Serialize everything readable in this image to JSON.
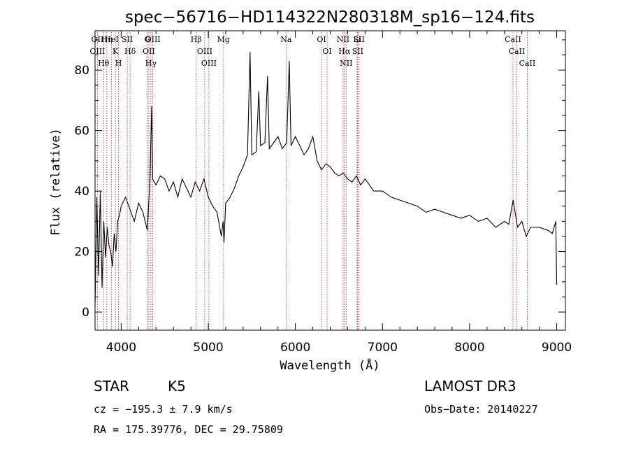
{
  "chart_data": {
    "type": "line",
    "title": "spec−56716−HD114322N280318M_sp16−124.fits",
    "xlabel": "Wavelength (Å)",
    "ylabel": "Flux (relative)",
    "xlim": [
      3700,
      9100
    ],
    "ylim": [
      -6,
      93
    ],
    "xticks": [
      4000,
      5000,
      6000,
      7000,
      8000,
      9000
    ],
    "yticks": [
      0,
      20,
      40,
      60,
      80
    ],
    "grid": false,
    "series": [
      {
        "name": "spectrum",
        "x": [
          3700,
          3720,
          3740,
          3760,
          3780,
          3800,
          3820,
          3840,
          3860,
          3880,
          3900,
          3920,
          3940,
          3960,
          3980,
          4000,
          4050,
          4100,
          4150,
          4200,
          4250,
          4300,
          4330,
          4350,
          4360,
          4400,
          4450,
          4500,
          4550,
          4600,
          4650,
          4700,
          4750,
          4800,
          4850,
          4900,
          4950,
          5000,
          5050,
          5100,
          5150,
          5170,
          5180,
          5200,
          5250,
          5300,
          5350,
          5400,
          5450,
          5480,
          5500,
          5550,
          5580,
          5600,
          5650,
          5680,
          5700,
          5750,
          5800,
          5850,
          5900,
          5930,
          5950,
          6000,
          6050,
          6100,
          6150,
          6200,
          6250,
          6300,
          6350,
          6400,
          6450,
          6500,
          6550,
          6600,
          6650,
          6700,
          6750,
          6800,
          6900,
          7000,
          7100,
          7200,
          7300,
          7400,
          7500,
          7600,
          7700,
          7800,
          7900,
          8000,
          8100,
          8200,
          8300,
          8400,
          8450,
          8500,
          8550,
          8600,
          8650,
          8700,
          8800,
          8900,
          8950,
          8990,
          9000
        ],
        "y": [
          2,
          38,
          12,
          40,
          8,
          30,
          18,
          28,
          22,
          20,
          15,
          26,
          20,
          30,
          32,
          35,
          38,
          34,
          30,
          36,
          33,
          27,
          44,
          68,
          44,
          42,
          45,
          44,
          40,
          43,
          38,
          44,
          41,
          38,
          43,
          40,
          44,
          38,
          35,
          33,
          25,
          30,
          23,
          36,
          38,
          41,
          45,
          48,
          52,
          86,
          52,
          53,
          73,
          55,
          56,
          78,
          54,
          56,
          58,
          54,
          56,
          83,
          55,
          58,
          55,
          52,
          54,
          58,
          50,
          47,
          49,
          48,
          46,
          45,
          46,
          44,
          43,
          45,
          42,
          44,
          40,
          40,
          38,
          37,
          36,
          35,
          33,
          34,
          33,
          32,
          31,
          32,
          30,
          31,
          28,
          30,
          29,
          37,
          28,
          30,
          25,
          28,
          28,
          27,
          26,
          30,
          9
        ]
      }
    ],
    "spectral_lines": [
      {
        "label": "Hθ",
        "wave": 3798
      },
      {
        "label": "OII",
        "wave": 3727
      },
      {
        "label": "OIII",
        "wave": 3727
      },
      {
        "label": "HeI",
        "wave": 3889
      },
      {
        "label": "Hη",
        "wave": 3835
      },
      {
        "label": "K",
        "wave": 3934
      },
      {
        "label": "H",
        "wave": 3969
      },
      {
        "label": "SII",
        "wave": 4070
      },
      {
        "label": "Hδ",
        "wave": 4102
      },
      {
        "label": "OII",
        "wave": 4317
      },
      {
        "label": "Hγ",
        "wave": 4341
      },
      {
        "label": "G",
        "wave": 4300
      },
      {
        "label": "OIII",
        "wave": 4363
      },
      {
        "label": "Hβ",
        "wave": 4861
      },
      {
        "label": "OIII",
        "wave": 4959
      },
      {
        "label": "OIII",
        "wave": 5007
      },
      {
        "label": "Mg",
        "wave": 5175
      },
      {
        "label": "Na",
        "wave": 5893
      },
      {
        "label": "OI",
        "wave": 6300
      },
      {
        "label": "OI",
        "wave": 6364
      },
      {
        "label": "Hα",
        "wave": 6563
      },
      {
        "label": "NII",
        "wave": 6548
      },
      {
        "label": "NII",
        "wave": 6583
      },
      {
        "label": "SII",
        "wave": 6716
      },
      {
        "label": "SII",
        "wave": 6731
      },
      {
        "label": "Li",
        "wave": 6708
      },
      {
        "label": "CaII",
        "wave": 8498
      },
      {
        "label": "CaII",
        "wave": 8542
      },
      {
        "label": "CaII",
        "wave": 8662
      }
    ]
  },
  "info": {
    "object_class": "STAR",
    "subclass": "K5",
    "survey": "LAMOST DR3",
    "redshift_line": "cz = −195.3 ± 7.9 km/s",
    "obs_date_line": "Obs−Date: 20140227",
    "coords_line": "RA = 175.39776, DEC =  29.75809"
  },
  "colors": {
    "spectrum": "#000000",
    "line_markers": "#b22222",
    "axes": "#000000"
  }
}
